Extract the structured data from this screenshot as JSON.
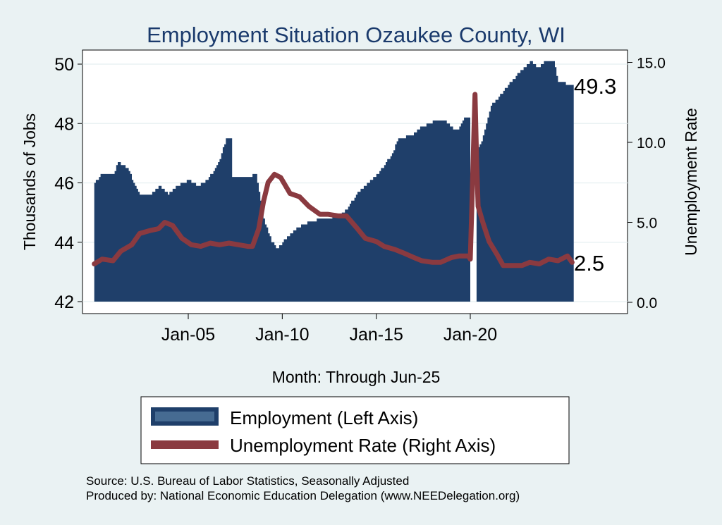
{
  "chart_data": {
    "type": "area+line",
    "title": "Employment Situation Ozaukee  County, WI",
    "xlabel": "Month: Through Jun-25",
    "ylabel_left": "Thousands of Jobs",
    "ylabel_right": "Unemployment Rate",
    "x_ticks": [
      "Jan-05",
      "Jan-10",
      "Jan-15",
      "Jan-20"
    ],
    "y_ticks_left": [
      "42",
      "44",
      "46",
      "48",
      "50"
    ],
    "y_ticks_right": [
      "0.0",
      "5.0",
      "10.0",
      "15.0"
    ],
    "ylim_left": [
      42,
      50.3
    ],
    "ylim_right": [
      0,
      15.2
    ],
    "x_range": [
      "Jan-00",
      "Jun-25"
    ],
    "series": [
      {
        "name": "Employment (Left Axis)",
        "axis": "left",
        "color": "#1f3f6a",
        "points": [
          [
            "2000-01",
            46.0
          ],
          [
            "2000-05",
            46.25
          ],
          [
            "2001-01",
            46.3
          ],
          [
            "2001-04",
            46.7
          ],
          [
            "2001-10",
            46.5
          ],
          [
            "2002-02",
            46.0
          ],
          [
            "2002-06",
            45.6
          ],
          [
            "2003-01",
            45.6
          ],
          [
            "2003-06",
            45.9
          ],
          [
            "2003-12",
            45.6
          ],
          [
            "2004-06",
            45.9
          ],
          [
            "2005-01",
            46.1
          ],
          [
            "2005-07",
            45.9
          ],
          [
            "2006-01",
            46.1
          ],
          [
            "2006-06",
            46.5
          ],
          [
            "2006-09",
            46.8
          ],
          [
            "2007-01",
            47.5
          ],
          [
            "2007-04",
            47.5
          ],
          [
            "2007-05",
            46.2
          ],
          [
            "2008-03",
            46.2
          ],
          [
            "2008-08",
            46.3
          ],
          [
            "2009-01",
            44.8
          ],
          [
            "2009-06",
            44.0
          ],
          [
            "2009-10",
            43.8
          ],
          [
            "2010-04",
            44.2
          ],
          [
            "2010-11",
            44.5
          ],
          [
            "2011-06",
            44.7
          ],
          [
            "2012-04",
            44.8
          ],
          [
            "2013-01",
            44.9
          ],
          [
            "2013-06",
            45.1
          ],
          [
            "2013-12",
            45.6
          ],
          [
            "2014-06",
            45.9
          ],
          [
            "2015-03",
            46.4
          ],
          [
            "2015-10",
            46.9
          ],
          [
            "2016-03",
            47.5
          ],
          [
            "2016-12",
            47.6
          ],
          [
            "2017-06",
            47.9
          ],
          [
            "2018-03",
            48.1
          ],
          [
            "2018-09",
            48.05
          ],
          [
            "2019-01",
            47.85
          ],
          [
            "2019-05",
            47.8
          ],
          [
            "2019-09",
            48.2
          ],
          [
            "2019-12",
            48.2
          ],
          [
            "2020-01",
            42.0
          ],
          [
            "2020-04",
            42.0
          ],
          [
            "2020-05",
            47.1
          ],
          [
            "2020-08",
            47.4
          ],
          [
            "2021-02",
            48.6
          ],
          [
            "2021-07",
            48.9
          ],
          [
            "2022-01",
            49.3
          ],
          [
            "2022-06",
            49.6
          ],
          [
            "2022-10",
            49.8
          ],
          [
            "2023-03",
            50.1
          ],
          [
            "2023-08",
            49.9
          ],
          [
            "2024-01",
            50.1
          ],
          [
            "2024-06",
            50.1
          ],
          [
            "2024-09",
            49.4
          ],
          [
            "2025-06",
            49.3
          ]
        ]
      },
      {
        "name": "Unemployment Rate (Right Axis)",
        "axis": "right",
        "color": "#8a3a40",
        "points": [
          [
            "2000-01",
            2.4
          ],
          [
            "2000-06",
            2.7
          ],
          [
            "2001-01",
            2.6
          ],
          [
            "2001-06",
            3.2
          ],
          [
            "2002-01",
            3.6
          ],
          [
            "2002-06",
            4.3
          ],
          [
            "2003-01",
            4.5
          ],
          [
            "2003-06",
            4.6
          ],
          [
            "2003-10",
            5.0
          ],
          [
            "2004-03",
            4.8
          ],
          [
            "2004-09",
            4.0
          ],
          [
            "2005-03",
            3.6
          ],
          [
            "2005-09",
            3.5
          ],
          [
            "2006-03",
            3.7
          ],
          [
            "2006-09",
            3.6
          ],
          [
            "2007-03",
            3.7
          ],
          [
            "2007-09",
            3.6
          ],
          [
            "2008-03",
            3.5
          ],
          [
            "2008-06",
            3.5
          ],
          [
            "2008-10",
            4.6
          ],
          [
            "2009-01",
            6.3
          ],
          [
            "2009-04",
            7.5
          ],
          [
            "2009-08",
            8.0
          ],
          [
            "2009-12",
            7.8
          ],
          [
            "2010-06",
            6.8
          ],
          [
            "2010-12",
            6.6
          ],
          [
            "2011-06",
            6.0
          ],
          [
            "2012-01",
            5.5
          ],
          [
            "2012-06",
            5.5
          ],
          [
            "2013-01",
            5.4
          ],
          [
            "2013-06",
            5.4
          ],
          [
            "2014-01",
            4.6
          ],
          [
            "2014-06",
            4.0
          ],
          [
            "2015-01",
            3.8
          ],
          [
            "2015-06",
            3.5
          ],
          [
            "2016-01",
            3.3
          ],
          [
            "2016-06",
            3.1
          ],
          [
            "2017-01",
            2.8
          ],
          [
            "2017-06",
            2.6
          ],
          [
            "2018-01",
            2.5
          ],
          [
            "2018-06",
            2.5
          ],
          [
            "2019-01",
            2.8
          ],
          [
            "2019-06",
            2.9
          ],
          [
            "2019-12",
            2.9
          ],
          [
            "2020-01",
            2.7
          ],
          [
            "2020-02",
            6.0
          ],
          [
            "2020-04",
            13.0
          ],
          [
            "2020-05",
            9.0
          ],
          [
            "2020-06",
            6.0
          ],
          [
            "2020-09",
            5.0
          ],
          [
            "2021-01",
            3.8
          ],
          [
            "2021-06",
            3.0
          ],
          [
            "2021-10",
            2.3
          ],
          [
            "2022-04",
            2.3
          ],
          [
            "2022-10",
            2.3
          ],
          [
            "2023-03",
            2.5
          ],
          [
            "2023-09",
            2.4
          ],
          [
            "2024-03",
            2.7
          ],
          [
            "2024-09",
            2.6
          ],
          [
            "2025-03",
            2.9
          ],
          [
            "2025-06",
            2.5
          ]
        ]
      }
    ],
    "end_labels": {
      "employment": "49.3",
      "unemployment": "2.5"
    },
    "legend": {
      "placement": "bottom-center",
      "items": [
        "Employment (Left Axis)",
        "Unemployment Rate (Right Axis)"
      ]
    },
    "source_lines": [
      "Source: U.S. Bureau of Labor Statistics, Seasonally Adjusted",
      "Produced by: National Economic Education Delegation (www.NEEDelegation.org)"
    ]
  }
}
